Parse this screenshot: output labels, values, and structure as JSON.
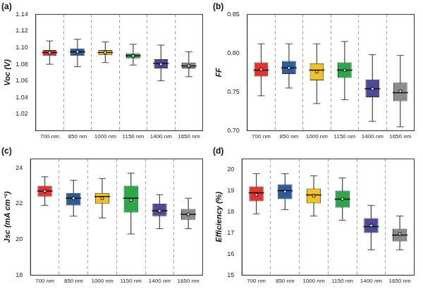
{
  "chart_data": [
    {
      "type": "box",
      "title": "(a)",
      "y_label": "Voc (V)",
      "categories": [
        "700 nm",
        "850 nm",
        "1000 nm",
        "1150 nm",
        "1400 nm",
        "1650 nm"
      ],
      "colors": [
        "#e8302f",
        "#2b5c9c",
        "#f5c21b",
        "#2aa84a",
        "#4b4b99",
        "#8c8c8c"
      ],
      "min": [
        1.08,
        1.077,
        1.082,
        1.079,
        1.06,
        1.065
      ],
      "q1": [
        1.09,
        1.09,
        1.091,
        1.087,
        1.075,
        1.075
      ],
      "median": [
        1.094,
        1.095,
        1.094,
        1.09,
        1.081,
        1.078
      ],
      "q3": [
        1.097,
        1.099,
        1.097,
        1.093,
        1.086,
        1.082
      ],
      "max": [
        1.108,
        1.11,
        1.107,
        1.104,
        1.103,
        1.095
      ],
      "mean": [
        1.094,
        1.095,
        1.094,
        1.09,
        1.08,
        1.078
      ],
      "ylim": [
        1.0,
        1.14
      ],
      "yticks": [
        1.02,
        1.04,
        1.06,
        1.08,
        {
          "value": 1.1,
          "label": "1.10"
        },
        1.12,
        1.14
      ],
      "grid": false
    },
    {
      "type": "box",
      "title": "(b)",
      "y_label": "FF",
      "categories": [
        "700 nm",
        "850 nm",
        "1000 nm",
        "1150 nm",
        "1400 nm",
        "1650 nm"
      ],
      "colors": [
        "#e8302f",
        "#2b5c9c",
        "#f5c21b",
        "#2aa84a",
        "#4b4b99",
        "#8c8c8c"
      ],
      "min": [
        0.745,
        0.755,
        0.735,
        0.74,
        0.712,
        0.705
      ],
      "q1": [
        0.77,
        0.773,
        0.765,
        0.768,
        0.743,
        0.738
      ],
      "median": [
        0.778,
        0.781,
        0.778,
        0.778,
        0.754,
        0.749
      ],
      "q3": [
        0.788,
        0.79,
        0.787,
        0.788,
        0.766,
        0.762
      ],
      "max": [
        0.812,
        0.812,
        0.812,
        0.815,
        0.798,
        0.797
      ],
      "mean": [
        0.779,
        0.781,
        0.776,
        0.778,
        0.754,
        0.751
      ],
      "ylim": [
        0.7,
        0.85
      ],
      "yticks": [
        {
          "value": 0.7,
          "label": "0.70"
        },
        0.75,
        {
          "value": 0.8,
          "label": "0.80"
        },
        0.85
      ],
      "grid": false
    },
    {
      "type": "box",
      "title": "(c)",
      "y_label": "Jsc (mA cm⁻²)",
      "categories": [
        "700 nm",
        "850 nm",
        "1000 nm",
        "1150 nm",
        "1400 nm",
        "1650 nm"
      ],
      "colors": [
        "#e8302f",
        "#2b5c9c",
        "#f5c21b",
        "#2aa84a",
        "#4b4b99",
        "#8c8c8c"
      ],
      "min": [
        21.9,
        21.3,
        21.2,
        20.3,
        20.6,
        20.6
      ],
      "q1": [
        22.4,
        21.9,
        22.0,
        21.5,
        21.3,
        21.1
      ],
      "median": [
        22.7,
        22.3,
        22.4,
        22.3,
        21.6,
        21.4
      ],
      "q3": [
        23.0,
        22.6,
        22.6,
        23.0,
        22.0,
        21.7
      ],
      "max": [
        23.5,
        23.3,
        23.4,
        23.7,
        22.5,
        22.3
      ],
      "mean": [
        22.7,
        22.3,
        22.3,
        22.2,
        21.6,
        21.4
      ],
      "ylim": [
        18,
        24.5
      ],
      "yticks": [
        18,
        20,
        22,
        24
      ],
      "grid": false
    },
    {
      "type": "box",
      "title": "(d)",
      "y_label": "Efficiency (%)",
      "categories": [
        "700 nm",
        "850 nm",
        "1000 nm",
        "1150 nm",
        "1400 nm",
        "1650 nm"
      ],
      "colors": [
        "#e8302f",
        "#2b5c9c",
        "#f5c21b",
        "#2aa84a",
        "#4b4b99",
        "#8c8c8c"
      ],
      "min": [
        17.9,
        18.1,
        17.8,
        17.6,
        16.2,
        16.2
      ],
      "q1": [
        18.5,
        18.6,
        18.4,
        18.2,
        17.0,
        16.6
      ],
      "median": [
        18.9,
        19.0,
        18.8,
        18.6,
        17.3,
        16.9
      ],
      "q3": [
        19.2,
        19.3,
        19.1,
        19.0,
        17.7,
        17.2
      ],
      "max": [
        19.8,
        19.8,
        19.7,
        19.6,
        18.3,
        17.8
      ],
      "mean": [
        18.8,
        18.95,
        18.75,
        18.6,
        17.35,
        16.95
      ],
      "ylim": [
        15,
        20.5
      ],
      "yticks": [
        15,
        16,
        17,
        18,
        19,
        20
      ],
      "grid": false
    }
  ]
}
